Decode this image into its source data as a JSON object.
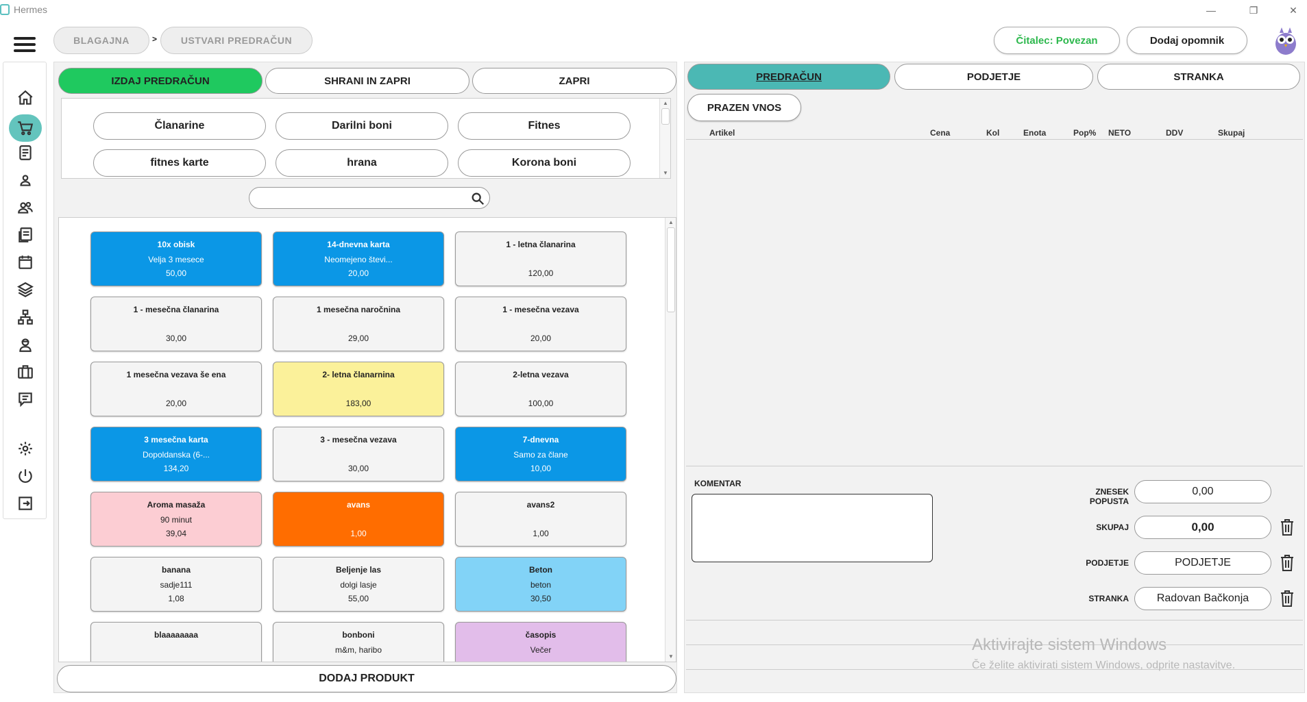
{
  "window": {
    "title": "Hermes",
    "min": "—",
    "restore": "❐",
    "close": "✕"
  },
  "breadcrumb": {
    "items": [
      "BLAGAJNA",
      "USTVARI PREDRAČUN"
    ],
    "separator": ">"
  },
  "header": {
    "reader_status": "Čitalec: Povezan",
    "reader_color": "#2db84d",
    "reminder_button": "Dodaj opomnik"
  },
  "sidebar": {
    "icons": [
      "home-icon",
      "cart-icon",
      "document-icon",
      "person-icon",
      "people-icon",
      "documents-icon",
      "calendar-icon",
      "layers-icon",
      "network-icon",
      "worker-icon",
      "briefcase-icon",
      "chat-icon",
      "gear-icon",
      "power-icon",
      "logout-icon"
    ]
  },
  "actions": {
    "issue": "IZDAJ PREDRAČUN",
    "issue_color": "#1fc95f",
    "save_close": "SHRANI IN ZAPRI",
    "close": "ZAPRI"
  },
  "categories": [
    "Članarine",
    "Darilni boni",
    "Fitnes",
    "fitnes karte",
    "hrana",
    "Korona boni"
  ],
  "search": {
    "placeholder": ""
  },
  "products": [
    {
      "name": "10x obisk",
      "desc": "Velja 3 mesece",
      "price": "50,00",
      "bg": "#0b97e6",
      "fg": "#ffffff"
    },
    {
      "name": "14-dnevna karta",
      "desc": "Neomejeno števi...",
      "price": "20,00",
      "bg": "#0b97e6",
      "fg": "#ffffff"
    },
    {
      "name": "1 - letna članarina",
      "desc": "",
      "price": "120,00",
      "bg": "#f4f4f4",
      "fg": "#222222"
    },
    {
      "name": "1 - mesečna članarina",
      "desc": "",
      "price": "30,00",
      "bg": "#f4f4f4",
      "fg": "#222222"
    },
    {
      "name": "1 mesečna naročnina",
      "desc": "",
      "price": "29,00",
      "bg": "#f4f4f4",
      "fg": "#222222"
    },
    {
      "name": "1 - mesečna vezava",
      "desc": "",
      "price": "20,00",
      "bg": "#f4f4f4",
      "fg": "#222222"
    },
    {
      "name": "1 mesečna vezava še ena",
      "desc": "",
      "price": "20,00",
      "bg": "#f4f4f4",
      "fg": "#222222"
    },
    {
      "name": "2- letna članarnina",
      "desc": "",
      "price": "183,00",
      "bg": "#fbf19a",
      "fg": "#222222"
    },
    {
      "name": "2-letna vezava",
      "desc": "",
      "price": "100,00",
      "bg": "#f4f4f4",
      "fg": "#222222"
    },
    {
      "name": "3 mesečna karta",
      "desc": "Dopoldanska (6-...",
      "price": "134,20",
      "bg": "#0b97e6",
      "fg": "#ffffff"
    },
    {
      "name": "3 - mesečna vezava",
      "desc": "",
      "price": "30,00",
      "bg": "#f4f4f4",
      "fg": "#222222"
    },
    {
      "name": "7-dnevna",
      "desc": "Samo za člane",
      "price": "10,00",
      "bg": "#0b97e6",
      "fg": "#ffffff"
    },
    {
      "name": "Aroma masaža",
      "desc": "90 minut",
      "price": "39,04",
      "bg": "#fccdd3",
      "fg": "#222222"
    },
    {
      "name": "avans",
      "desc": "",
      "price": "1,00",
      "bg": "#ff6d00",
      "fg": "#ffffff"
    },
    {
      "name": "avans2",
      "desc": "",
      "price": "1,00",
      "bg": "#f4f4f4",
      "fg": "#222222"
    },
    {
      "name": "banana",
      "desc": "sadje111",
      "price": "1,08",
      "bg": "#f4f4f4",
      "fg": "#222222"
    },
    {
      "name": "Beljenje las",
      "desc": "dolgi lasje",
      "price": "55,00",
      "bg": "#f4f4f4",
      "fg": "#222222"
    },
    {
      "name": "Beton",
      "desc": "beton",
      "price": "30,50",
      "bg": "#82d3f7",
      "fg": "#222222"
    },
    {
      "name": "blaaaaaaaa",
      "desc": "",
      "price": "",
      "bg": "#f4f4f4",
      "fg": "#222222"
    },
    {
      "name": "bonboni",
      "desc": "m&m, haribo",
      "price": "",
      "bg": "#f4f4f4",
      "fg": "#222222"
    },
    {
      "name": "časopis",
      "desc": "Večer",
      "price": "",
      "bg": "#e2bdea",
      "fg": "#222222"
    }
  ],
  "add_product": "DODAJ PRODUKT",
  "right": {
    "tabs": [
      "PREDRAČUN",
      "PODJETJE",
      "STRANKA"
    ],
    "active_tab_color": "#4bb8b4",
    "empty_entry": "PRAZEN VNOS",
    "columns": [
      "Artikel",
      "Cena",
      "Kol",
      "Enota",
      "Pop%",
      "NETO",
      "DDV",
      "Skupaj"
    ],
    "comment_label": "KOMENTAR",
    "discount_label": "ZNESEK POPUSTA",
    "discount_value": "0,00",
    "total_label": "SKUPAJ",
    "total_value": "0,00",
    "company_label": "PODJETJE",
    "company_value": "PODJETJE",
    "customer_label": "STRANKA",
    "customer_value": "Radovan Bačkonja"
  },
  "watermark": {
    "line1": "Aktivirajte sistem Windows",
    "line2": "Če želite aktivirati sistem Windows, odprite nastavitve."
  }
}
